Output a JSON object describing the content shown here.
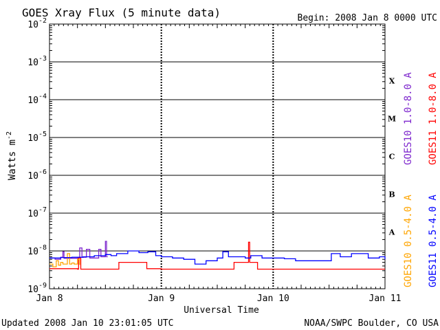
{
  "chart_data": {
    "type": "line",
    "title": "GOES Xray Flux (5 minute data)",
    "begin_label": "Begin:  2008 Jan 8 0000 UTC",
    "xlabel": "Universal Time",
    "ylabel": "Watts m",
    "ylabel_exp": "-2",
    "y_scale": "log",
    "ylim": [
      1e-09,
      0.01
    ],
    "y_ticks": [
      {
        "value": 0.01,
        "base": "10",
        "exp": "-2"
      },
      {
        "value": 0.001,
        "base": "10",
        "exp": "-3"
      },
      {
        "value": 0.0001,
        "base": "10",
        "exp": "-4"
      },
      {
        "value": 1e-05,
        "base": "10",
        "exp": "-5"
      },
      {
        "value": 1e-06,
        "base": "10",
        "exp": "-6"
      },
      {
        "value": 1e-07,
        "base": "10",
        "exp": "-7"
      },
      {
        "value": 1e-08,
        "base": "10",
        "exp": "-8"
      },
      {
        "value": 1e-09,
        "base": "10",
        "exp": "-9"
      }
    ],
    "x_unit": "days since 2008 Jan 8 0000 UTC",
    "xlim": [
      0,
      3
    ],
    "x_ticks": [
      {
        "value": 0,
        "label": "Jan 8"
      },
      {
        "value": 1,
        "label": "Jan 9"
      },
      {
        "value": 2,
        "label": "Jan 10"
      },
      {
        "value": 3,
        "label": "Jan 11"
      }
    ],
    "flare_classes": [
      {
        "label": "X",
        "value": 0.000316
      },
      {
        "label": "M",
        "value": 3.16e-05
      },
      {
        "label": "C",
        "value": 3.16e-06
      },
      {
        "label": "B",
        "value": 3.16e-07
      },
      {
        "label": "A",
        "value": 3.16e-08
      }
    ],
    "legend_placement": "right",
    "grid": true,
    "series": [
      {
        "name": "GOES10 1.0-8.0 A",
        "color": "#7d26cd",
        "points": [
          [
            0.0,
            6.5e-09
          ],
          [
            0.05,
            6e-09
          ],
          [
            0.1,
            6.8e-09
          ],
          [
            0.12,
            9.5e-09
          ],
          [
            0.13,
            6.4e-09
          ],
          [
            0.25,
            6.5e-09
          ],
          [
            0.27,
            1.2e-08
          ],
          [
            0.29,
            6.8e-09
          ],
          [
            0.33,
            1.1e-08
          ],
          [
            0.36,
            6.5e-09
          ],
          [
            0.42,
            6.5e-09
          ],
          [
            0.44,
            1.1e-08
          ],
          [
            0.46,
            7e-09
          ],
          [
            0.49,
            7e-09
          ],
          [
            0.5,
            1.8e-08
          ],
          [
            0.51,
            7e-09
          ],
          [
            0.52,
            7e-09
          ]
        ]
      },
      {
        "name": "GOES11 1.0-8.0 A",
        "color": "#ff0000",
        "points": [
          [
            0.0,
            3.4e-09
          ],
          [
            0.1,
            3.4e-09
          ],
          [
            0.2,
            3.4e-09
          ],
          [
            0.25,
            3.3e-09
          ],
          [
            0.26,
            6.5e-09
          ],
          [
            0.28,
            3.3e-09
          ],
          [
            0.35,
            3.3e-09
          ],
          [
            0.45,
            3.3e-09
          ],
          [
            0.6,
            3.3e-09
          ],
          [
            0.62,
            5e-09
          ],
          [
            0.85,
            5e-09
          ],
          [
            0.87,
            3.4e-09
          ],
          [
            1.0,
            3.3e-09
          ],
          [
            1.2,
            3.3e-09
          ],
          [
            1.4,
            3.3e-09
          ],
          [
            1.6,
            3.3e-09
          ],
          [
            1.65,
            5e-09
          ],
          [
            1.77,
            5e-09
          ],
          [
            1.78,
            1.7e-08
          ],
          [
            1.79,
            5e-09
          ],
          [
            1.84,
            5e-09
          ],
          [
            1.86,
            3.3e-09
          ],
          [
            2.0,
            3.3e-09
          ],
          [
            2.3,
            3.3e-09
          ],
          [
            2.6,
            3.3e-09
          ],
          [
            2.85,
            3.3e-09
          ],
          [
            3.0,
            3.3e-09
          ]
        ]
      },
      {
        "name": "GOES10 0.5-4.0 A",
        "color": "#ffa500",
        "points": [
          [
            0.0,
            4.5e-09
          ],
          [
            0.03,
            3.8e-09
          ],
          [
            0.06,
            5.5e-09
          ],
          [
            0.08,
            4.2e-09
          ],
          [
            0.1,
            5e-09
          ],
          [
            0.12,
            4.5e-09
          ],
          [
            0.16,
            8.5e-09
          ],
          [
            0.18,
            4.5e-09
          ],
          [
            0.2,
            4.8e-09
          ],
          [
            0.22,
            4.5e-09
          ],
          [
            0.25,
            6e-09
          ],
          [
            0.27,
            4.3e-09
          ]
        ]
      },
      {
        "name": "GOES11 0.5-4.0 A",
        "color": "#0000ff",
        "points": [
          [
            0.0,
            6.5e-09
          ],
          [
            0.1,
            6.7e-09
          ],
          [
            0.2,
            6.8e-09
          ],
          [
            0.3,
            7e-09
          ],
          [
            0.4,
            7.5e-09
          ],
          [
            0.5,
            8e-09
          ],
          [
            0.55,
            7.5e-09
          ],
          [
            0.6,
            8.5e-09
          ],
          [
            0.7,
            1e-08
          ],
          [
            0.8,
            9e-09
          ],
          [
            0.88,
            9.5e-09
          ],
          [
            0.95,
            7.5e-09
          ],
          [
            1.0,
            7e-09
          ],
          [
            1.1,
            6.5e-09
          ],
          [
            1.2,
            6e-09
          ],
          [
            1.3,
            4.5e-09
          ],
          [
            1.4,
            5.5e-09
          ],
          [
            1.5,
            6.5e-09
          ],
          [
            1.55,
            9.5e-09
          ],
          [
            1.6,
            7e-09
          ],
          [
            1.75,
            6.5e-09
          ],
          [
            1.8,
            7.5e-09
          ],
          [
            1.9,
            6.5e-09
          ],
          [
            2.0,
            6.5e-09
          ],
          [
            2.1,
            6.2e-09
          ],
          [
            2.2,
            5.5e-09
          ],
          [
            2.3,
            5.5e-09
          ],
          [
            2.5,
            5.5e-09
          ],
          [
            2.52,
            8.5e-09
          ],
          [
            2.6,
            7e-09
          ],
          [
            2.7,
            8.5e-09
          ],
          [
            2.85,
            6.5e-09
          ],
          [
            2.95,
            7e-09
          ],
          [
            3.0,
            6e-09
          ]
        ]
      }
    ],
    "footer_left": "Updated 2008 Jan 10 23:01:05 UTC",
    "footer_right": "NOAA/SWPC Boulder, CO USA"
  }
}
